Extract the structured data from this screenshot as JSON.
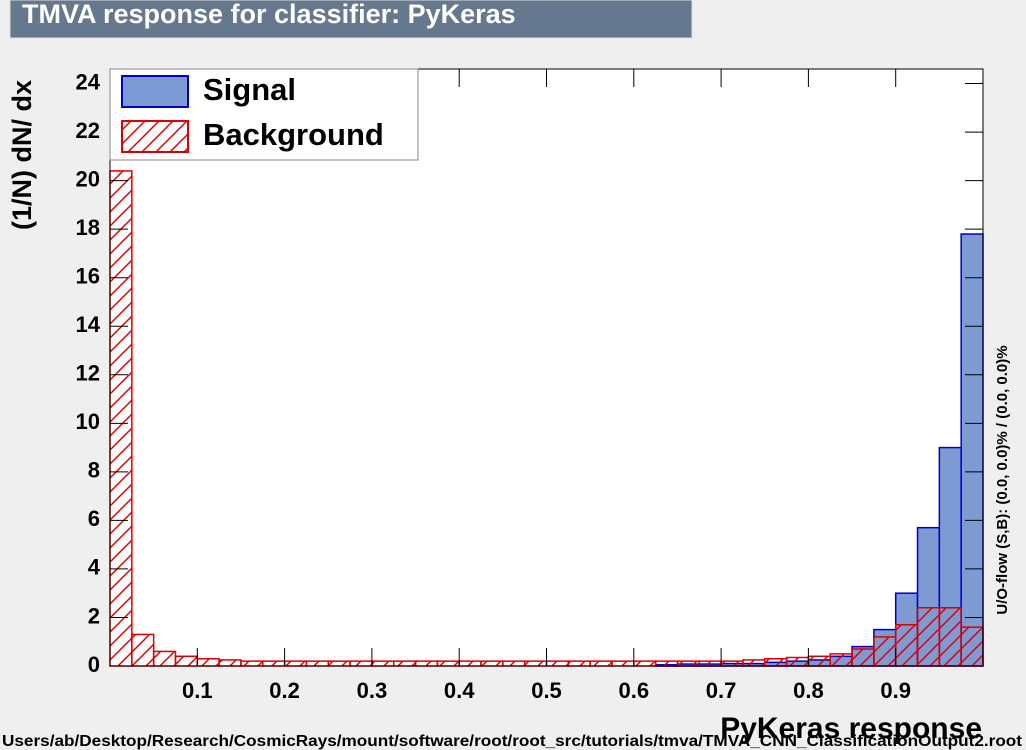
{
  "chart_data": {
    "type": "histogram",
    "title": "TMVA response for classifier: PyKeras",
    "x_label": "PyKeras response",
    "y_label": "(1/N) dN/ dx",
    "side_note": "U/O-flow (S,B): (0.0, 0.0)% / (0.0, 0.0)%",
    "footer": "Users/ab/Desktop/Research/CosmicRays/mount/software/root/root_src/tutorials/tmva/TMVA_CNN_ClassificationOutput2.root",
    "bins": [
      0,
      0.025,
      0.05,
      0.075,
      0.1,
      0.125,
      0.15,
      0.175,
      0.2,
      0.225,
      0.25,
      0.275,
      0.3,
      0.325,
      0.35,
      0.375,
      0.4,
      0.425,
      0.45,
      0.475,
      0.5,
      0.525,
      0.55,
      0.575,
      0.6,
      0.625,
      0.65,
      0.675,
      0.7,
      0.725,
      0.75,
      0.775,
      0.8,
      0.825,
      0.85,
      0.875,
      0.9,
      0.925,
      0.95,
      0.975,
      1
    ],
    "series": [
      {
        "name": "Signal",
        "color": "#0000cc",
        "fill": "#7d9ad3",
        "hatch": false,
        "values": [
          0,
          0,
          0,
          0,
          0,
          0,
          0,
          0,
          0,
          0,
          0,
          0,
          0,
          0,
          0,
          0,
          0,
          0,
          0,
          0,
          0,
          0,
          0,
          0,
          0,
          0.05,
          0.08,
          0.08,
          0.1,
          0.1,
          0.15,
          0.2,
          0.25,
          0.4,
          0.8,
          1.5,
          3.0,
          5.7,
          9.0,
          17.8
        ]
      },
      {
        "name": "Background",
        "color": "#dd0000",
        "fill": "none",
        "hatch": true,
        "values": [
          20.4,
          1.3,
          0.6,
          0.4,
          0.3,
          0.25,
          0.2,
          0.2,
          0.2,
          0.2,
          0.2,
          0.2,
          0.2,
          0.2,
          0.2,
          0.2,
          0.2,
          0.2,
          0.2,
          0.2,
          0.2,
          0.2,
          0.2,
          0.2,
          0.2,
          0.2,
          0.2,
          0.2,
          0.2,
          0.25,
          0.3,
          0.35,
          0.4,
          0.5,
          0.7,
          1.2,
          1.7,
          2.4,
          2.4,
          1.6
        ]
      }
    ],
    "xlim": [
      0,
      1
    ],
    "xticks": [
      0.1,
      0.2,
      0.3,
      0.4,
      0.5,
      0.6,
      0.7,
      0.8,
      0.9
    ],
    "ylim": [
      0,
      24.6
    ],
    "yticks": [
      0,
      2,
      4,
      6,
      8,
      10,
      12,
      14,
      16,
      18,
      20,
      22,
      24
    ],
    "legend": "top-left"
  }
}
